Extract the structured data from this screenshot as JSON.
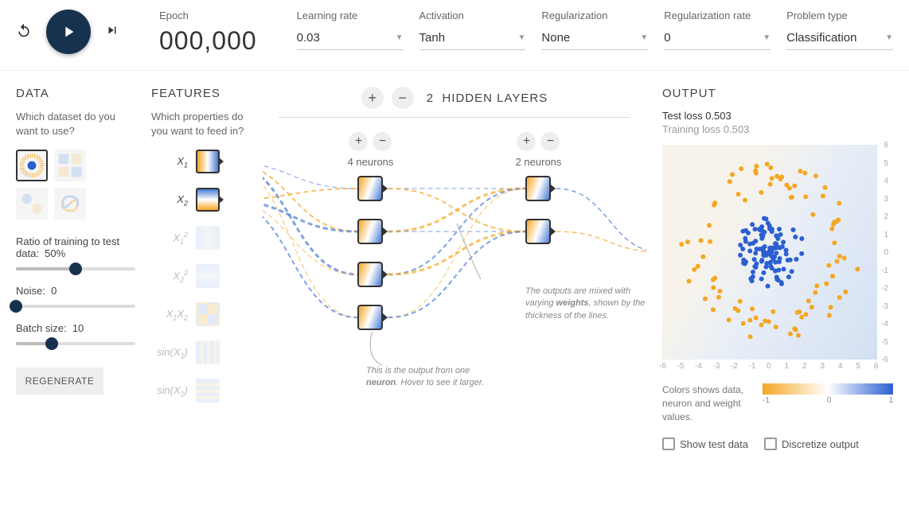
{
  "top": {
    "epoch_label": "Epoch",
    "epoch_value": "000,000",
    "controls": [
      {
        "label": "Learning rate",
        "value": "0.03"
      },
      {
        "label": "Activation",
        "value": "Tanh"
      },
      {
        "label": "Regularization",
        "value": "None"
      },
      {
        "label": "Regularization rate",
        "value": "0"
      },
      {
        "label": "Problem type",
        "value": "Classification"
      }
    ]
  },
  "data_col": {
    "title": "DATA",
    "subtitle": "Which dataset do you want to use?",
    "datasets": [
      {
        "name": "circle",
        "selected": true
      },
      {
        "name": "xor",
        "selected": false
      },
      {
        "name": "gauss",
        "selected": false
      },
      {
        "name": "spiral",
        "selected": false
      }
    ],
    "ratio_label": "Ratio of training to test data:",
    "ratio_value": "50%",
    "ratio_pct": 50,
    "noise_label": "Noise:",
    "noise_value": "0",
    "noise_pct": 0,
    "batch_label": "Batch size:",
    "batch_value": "10",
    "batch_pct": 30,
    "regen_label": "REGENERATE"
  },
  "feat_col": {
    "title": "FEATURES",
    "subtitle": "Which properties do you want to feed in?",
    "features": [
      {
        "label_html": "X<sub>1</sub>",
        "active": true,
        "gradient": "linear-gradient(90deg,#f5a623,#fff,#4a7bd1)"
      },
      {
        "label_html": "X<sub>2</sub>",
        "active": true,
        "gradient": "linear-gradient(180deg,#4a7bd1,#fff,#f5a623)"
      },
      {
        "label_html": "X<sub>1</sub><sup>2</sup>",
        "active": false,
        "gradient": "linear-gradient(90deg,#d3e0f2,#e8eef7,#d3e0f2)"
      },
      {
        "label_html": "X<sub>2</sub><sup>2</sup>",
        "active": false,
        "gradient": "linear-gradient(180deg,#d3e0f2,#e8eef7,#d3e0f2)"
      },
      {
        "label_html": "X<sub>1</sub>X<sub>2</sub>",
        "active": false,
        "gradient": "conic-gradient(#f5d9a3 0 25%, #c6d6ef 25% 50%, #f5d9a3 50% 75%, #c6d6ef 75% 100%)"
      },
      {
        "label_html": "sin(X<sub>1</sub>)",
        "active": false,
        "gradient": "repeating-linear-gradient(90deg,#d3e0f2 0 4px,#f5e9d3 4px 8px)"
      },
      {
        "label_html": "sin(X<sub>2</sub>)",
        "active": false,
        "gradient": "repeating-linear-gradient(180deg,#d3e0f2 0 4px,#f5e9d3 4px 8px)"
      }
    ]
  },
  "net_col": {
    "hidden_count": "2",
    "hidden_label": "HIDDEN LAYERS",
    "layers": [
      {
        "count_label": "4 neurons",
        "neurons": 4
      },
      {
        "count_label": "2 neurons",
        "neurons": 2
      }
    ],
    "callout_neuron": "This is the output from one <b>neuron</b>. Hover to see it larger.",
    "callout_weights": "The outputs are mixed with varying <b>weights</b>, shown by the thickness of the lines.",
    "link_colors": {
      "pos": "#4a7bd1",
      "neg": "#f5a623"
    }
  },
  "out_col": {
    "title": "OUTPUT",
    "test_loss_label": "Test loss",
    "test_loss_value": "0.503",
    "train_loss_label": "Training loss",
    "train_loss_value": "0.503",
    "axis": {
      "min": -6,
      "max": 6,
      "step": 1
    },
    "points": {
      "color_inner": "#2b5fd1",
      "color_outer": "#f5a623",
      "inner_count": 110,
      "outer_count": 90,
      "inner_radius": 2.0,
      "outer_radius_min": 3.2,
      "outer_radius_max": 5.0
    },
    "legend_text": "Colors shows data, neuron and weight values.",
    "gradient_labels": [
      "-1",
      "0",
      "1"
    ],
    "check_show_test": "Show test data",
    "check_discretize": "Discretize output"
  }
}
